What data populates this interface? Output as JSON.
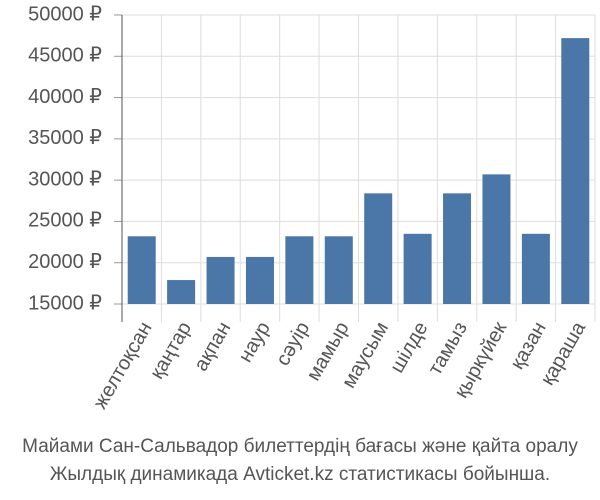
{
  "chart_data": {
    "type": "bar",
    "title": "Майами Сан-Сальвадор билеттердің бағасы және қайта оралу",
    "subtitle": "Жылдық динамикада Avticket.kz статистикасы бойынша.",
    "categories": [
      "желтоқсан",
      "қаңтар",
      "ақпан",
      "наур",
      "сәуір",
      "мамыр",
      "маусым",
      "шілде",
      "тамыз",
      "қыркүйек",
      "қазан",
      "қараша"
    ],
    "values": [
      23200,
      17900,
      20700,
      20700,
      23200,
      23200,
      28400,
      23500,
      28400,
      30700,
      23500,
      47200
    ],
    "color": "#4a76a8",
    "ylim": [
      15000,
      50000
    ],
    "yticks": [
      {
        "value": 15000,
        "label": "15000 ₽"
      },
      {
        "value": 20000,
        "label": "20000 ₽"
      },
      {
        "value": 25000,
        "label": "25000 ₽"
      },
      {
        "value": 30000,
        "label": "30000 ₽"
      },
      {
        "value": 35000,
        "label": "35000 ₽"
      },
      {
        "value": 40000,
        "label": "40000 ₽"
      },
      {
        "value": 45000,
        "label": "45000 ₽"
      },
      {
        "value": 50000,
        "label": "50000 ₽"
      }
    ],
    "grid": true
  }
}
